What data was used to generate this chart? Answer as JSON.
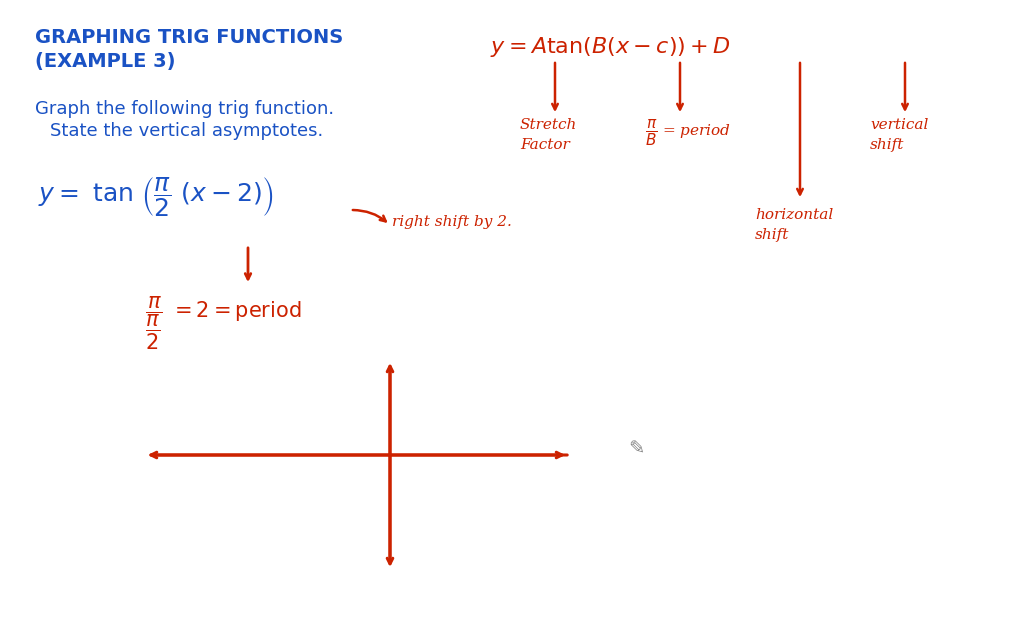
{
  "bg_color": "#ffffff",
  "title_color": "#1a52c4",
  "red_color": "#cc2200",
  "title_line1": "GRAPHING TRIG FUNCTIONS",
  "title_line2": "(EXAMPLE 3)",
  "subtitle_line1": "Graph the following trig function.",
  "subtitle_line2": "State the vertical asymptotes.",
  "fig_width": 10.24,
  "fig_height": 6.22,
  "dpi": 100
}
